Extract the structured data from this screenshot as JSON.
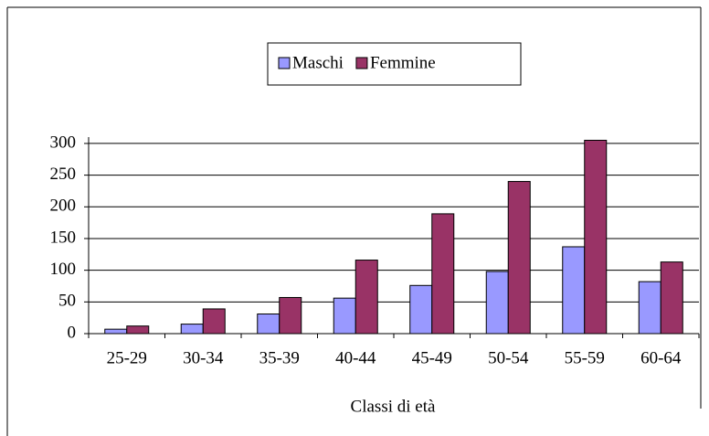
{
  "chart_data": {
    "type": "bar",
    "x_label": "Classi di età",
    "categories": [
      "25-29",
      "30-34",
      "35-39",
      "40-44",
      "45-49",
      "50-54",
      "55-59",
      "60-64"
    ],
    "series": [
      {
        "name": "Maschi",
        "color": "#9999ff",
        "values": [
          7,
          15,
          31,
          56,
          76,
          98,
          137,
          82
        ]
      },
      {
        "name": "Femmine",
        "color": "#993366",
        "values": [
          12,
          39,
          57,
          116,
          189,
          240,
          305,
          113
        ]
      }
    ],
    "ylim": [
      0,
      310
    ],
    "yticks": [
      0,
      50,
      100,
      150,
      200,
      250,
      300
    ],
    "grid": true,
    "legend": "top"
  }
}
